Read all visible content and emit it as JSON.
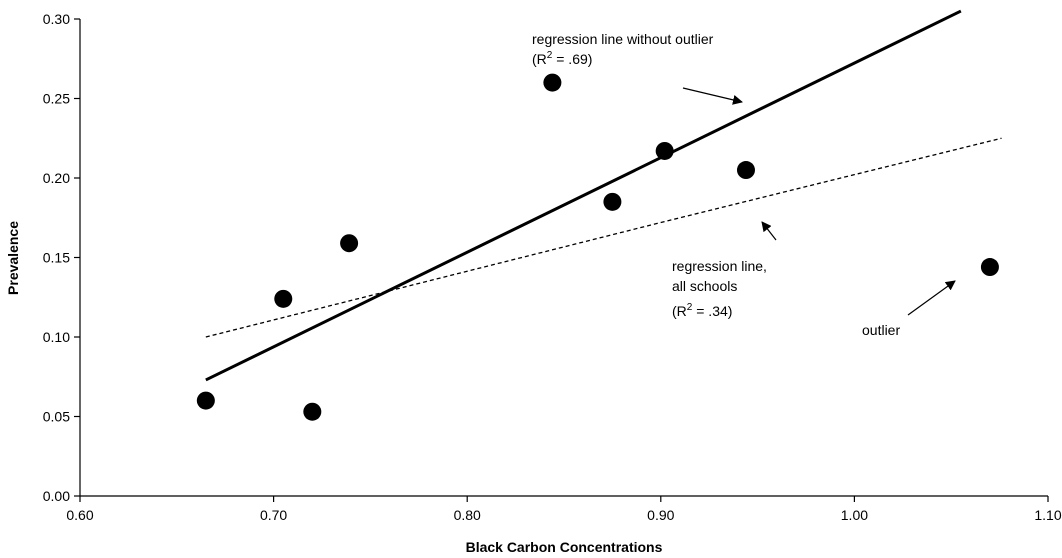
{
  "chart_data": {
    "type": "scatter",
    "title": "",
    "xlabel": "Black Carbon Concentrations",
    "ylabel": "Prevalence",
    "xlim": [
      0.6,
      1.1
    ],
    "ylim": [
      0.0,
      0.3
    ],
    "x_ticks": [
      "0.60",
      "0.70",
      "0.80",
      "0.90",
      "1.00",
      "1.10"
    ],
    "y_ticks": [
      "0.00",
      "0.05",
      "0.10",
      "0.15",
      "0.20",
      "0.25",
      "0.30"
    ],
    "grid": false,
    "points": [
      {
        "x": 0.665,
        "y": 0.06
      },
      {
        "x": 0.705,
        "y": 0.124
      },
      {
        "x": 0.72,
        "y": 0.053
      },
      {
        "x": 0.739,
        "y": 0.159
      },
      {
        "x": 0.844,
        "y": 0.26
      },
      {
        "x": 0.875,
        "y": 0.185
      },
      {
        "x": 0.902,
        "y": 0.217
      },
      {
        "x": 0.944,
        "y": 0.205
      },
      {
        "x": 1.07,
        "y": 0.144
      }
    ],
    "lines": [
      {
        "style": "solid",
        "x": [
          0.665,
          1.055
        ],
        "y": [
          0.073,
          0.305
        ]
      },
      {
        "style": "dashed",
        "x": [
          0.665,
          0.9,
          1.076
        ],
        "y": [
          0.1,
          0.172,
          0.225
        ]
      }
    ],
    "annotations": {
      "without_outlier_line1": "regression line without outlier",
      "without_outlier_r2_prefix": "(R",
      "without_outlier_r2_suffix": " = .69)",
      "all_schools_line1": "regression line,",
      "all_schools_line2": "all schools",
      "all_schools_r2_prefix": "(R",
      "all_schools_r2_suffix": " = .34)",
      "superscript": "2",
      "outlier": "outlier"
    }
  }
}
